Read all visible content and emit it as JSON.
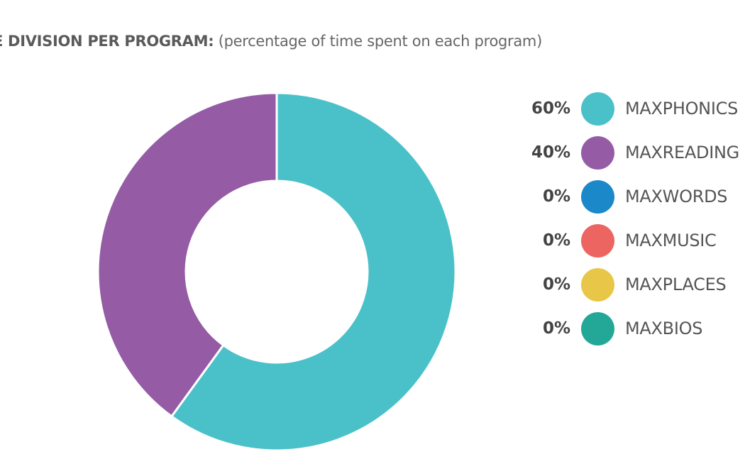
{
  "chart_data": {
    "type": "pie",
    "variant": "donut",
    "title": "E DIVISION PER PROGRAM:",
    "subtitle": "(percentage of time spent on each program)",
    "categories": [
      "MAXPHONICS",
      "MAXREADING",
      "MAXWORDS",
      "MAXMUSIC",
      "MAXPLACES",
      "MAXBIOS"
    ],
    "values": [
      60,
      40,
      0,
      0,
      0,
      0
    ],
    "value_labels": [
      "60%",
      "40%",
      "0%",
      "0%",
      "0%",
      "0%"
    ],
    "colors": [
      "#4ac1c8",
      "#955ca5",
      "#1a88c9",
      "#ec6560",
      "#e8c647",
      "#23a897"
    ],
    "legend_position": "right"
  }
}
